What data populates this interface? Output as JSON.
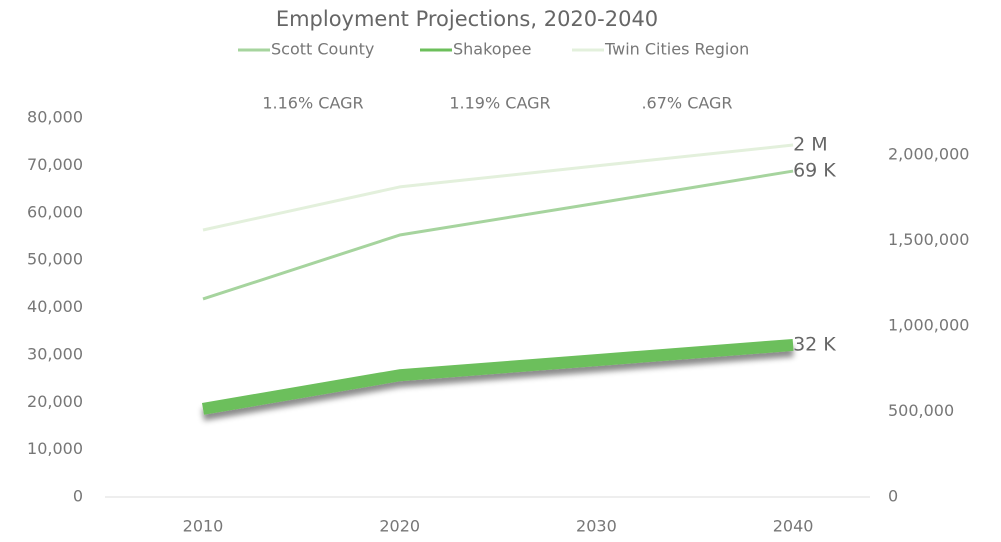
{
  "chart_data": {
    "type": "line",
    "title": "Employment Projections, 2020-2040",
    "categories": [
      "2010",
      "2020",
      "2030",
      "2040"
    ],
    "series": [
      {
        "name": "Scott County",
        "color": "#a6d49e",
        "width": 3,
        "values": [
          41800,
          55300,
          62000,
          68800
        ],
        "end_label": "69 K"
      },
      {
        "name": "Shakopee",
        "color": "#6cbf5b",
        "width": 12,
        "shadow": true,
        "values": [
          18600,
          25700,
          28900,
          32100
        ],
        "end_label": "32 K"
      },
      {
        "name": "Twin Cities Region",
        "color": "#e3f0dc",
        "width": 3,
        "axis": "y2",
        "values": [
          1561000,
          1813000,
          1936000,
          2058000
        ],
        "end_label": "2 M"
      }
    ],
    "annotations": [
      "1.16% CAGR",
      "1.19% CAGR",
      ".67% CAGR"
    ],
    "ylim": [
      0,
      80000
    ],
    "yticks": [
      0,
      {
        "value": 10000,
        "label": "10,000"
      },
      {
        "value": 20000,
        "label": "20,000"
      },
      {
        "value": 30000,
        "label": "30,000"
      },
      {
        "value": 40000,
        "label": "40,000"
      },
      {
        "value": 50000,
        "label": "50,000"
      },
      {
        "value": 60000,
        "label": "60,000"
      },
      {
        "value": 70000,
        "label": "70,000"
      },
      {
        "value": 80000,
        "label": "80,000"
      }
    ],
    "y2lim": [
      0,
      2216000
    ],
    "y2ticks": [
      0,
      {
        "value": 500000,
        "label": "500,000"
      },
      {
        "value": 1000000,
        "label": "1,000,000"
      },
      {
        "value": 1500000,
        "label": "1,500,000"
      },
      {
        "value": 2000000,
        "label": "2,000,000"
      }
    ],
    "grid": false
  }
}
